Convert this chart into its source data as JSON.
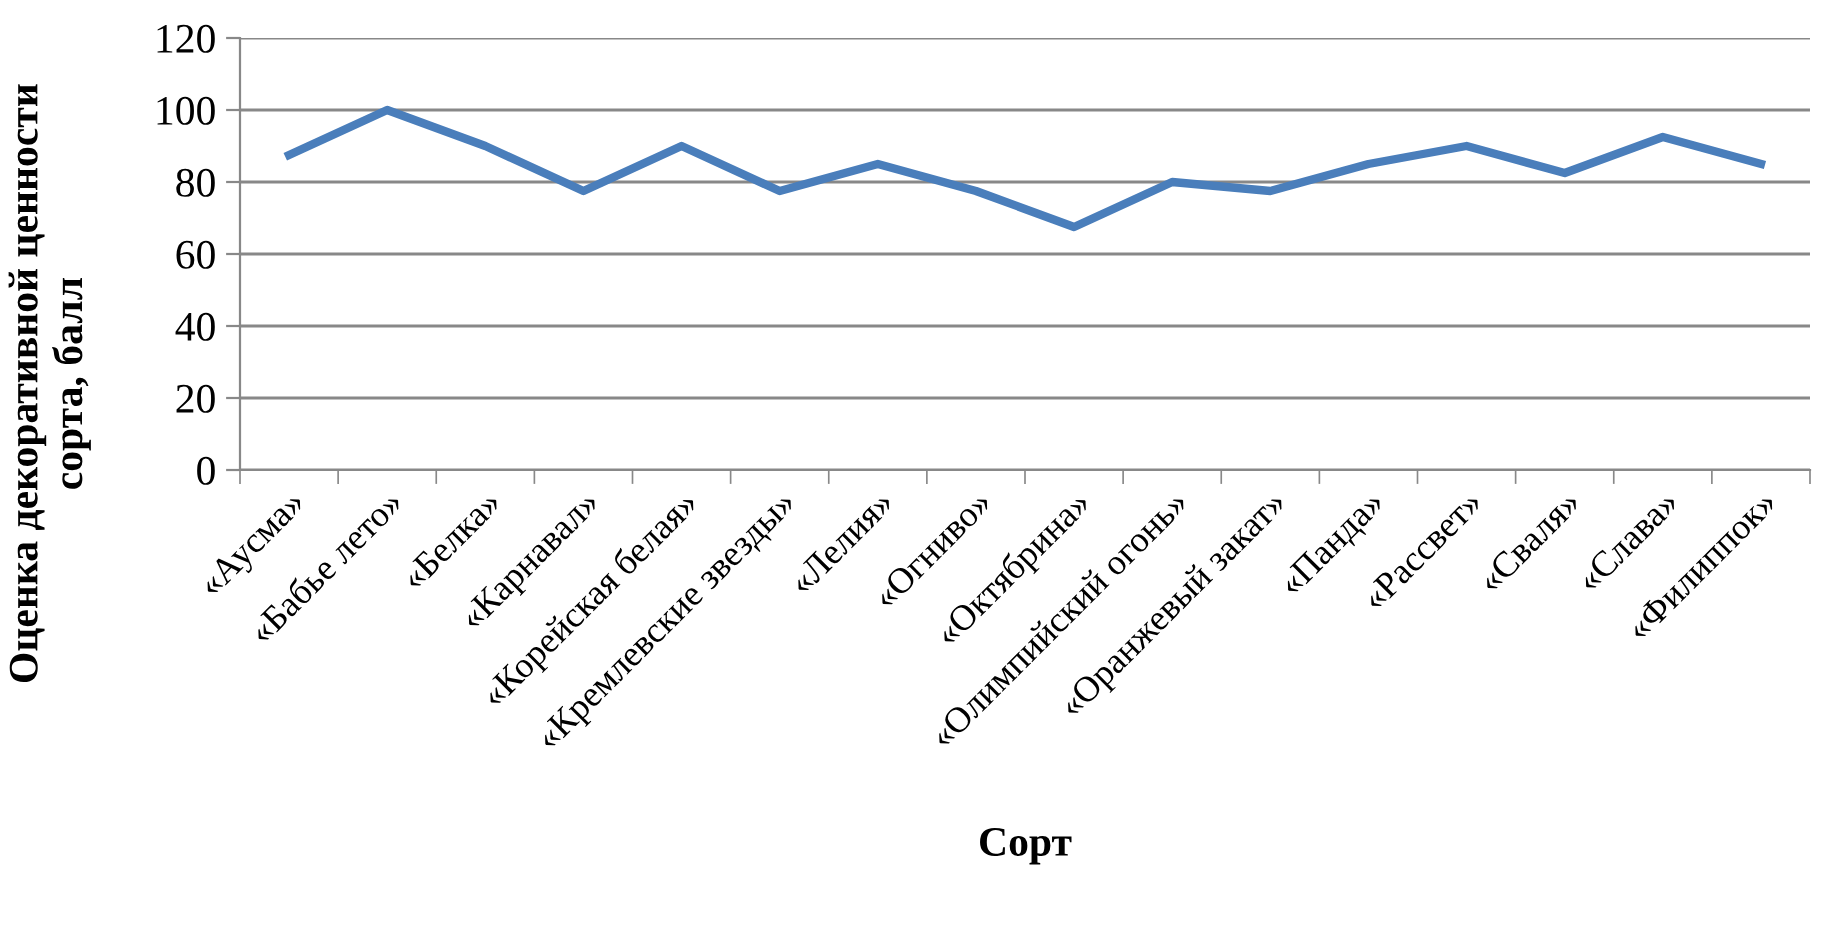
{
  "chart_data": {
    "type": "line",
    "xlabel": "Сорт",
    "ylabel": "Оценка декоративной ценности\nсорта, балл",
    "categories": [
      "«Аусма»",
      "«Бабье лето»",
      "«Белка»",
      "«Карнавал»",
      "«Корейская белая»",
      "«Кремлевские звезды»",
      "«Лелия»",
      "«Огниво»",
      "«Октябрина»",
      "«Олимпийский огонь»",
      "«Оранжевый закат»",
      "«Панда»",
      "«Рассвет»",
      "«Сваля»",
      "«Слава»",
      "«Филиппок»"
    ],
    "series": [
      {
        "color": "#4a7ebb",
        "values": [
          87.5,
          100,
          90,
          77.5,
          90,
          77.5,
          85,
          77.5,
          67.5,
          80,
          77.5,
          85,
          90,
          82.5,
          92.5,
          85
        ]
      }
    ],
    "ylim": [
      0,
      120
    ],
    "yticks": [
      0,
      20,
      40,
      60,
      80,
      100,
      120
    ],
    "grid": "y",
    "legend": false,
    "marker": "none",
    "line_style": "solid"
  }
}
